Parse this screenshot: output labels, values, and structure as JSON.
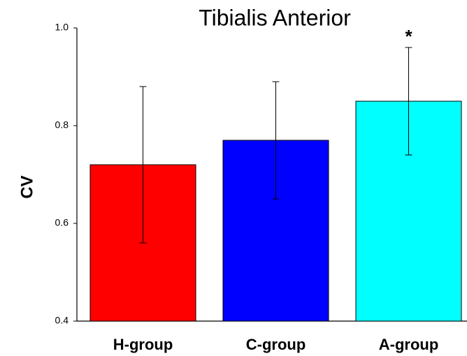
{
  "chart_data": {
    "type": "bar",
    "title": "Tibialis Anterior",
    "y_label": "CV",
    "categories": [
      "H-group",
      "C-group",
      "A-group"
    ],
    "values": [
      0.72,
      0.77,
      0.85
    ],
    "errors": [
      0.16,
      0.12,
      0.11
    ],
    "colors": [
      "#ff0000",
      "#0000ff",
      "#00ffff"
    ],
    "significance": [
      null,
      null,
      "*"
    ],
    "ylim": [
      0.4,
      1.0
    ],
    "yticks": [
      0.4,
      0.6,
      0.8,
      {
        "value": 1.0,
        "label": "1.0"
      }
    ],
    "grid": false
  }
}
